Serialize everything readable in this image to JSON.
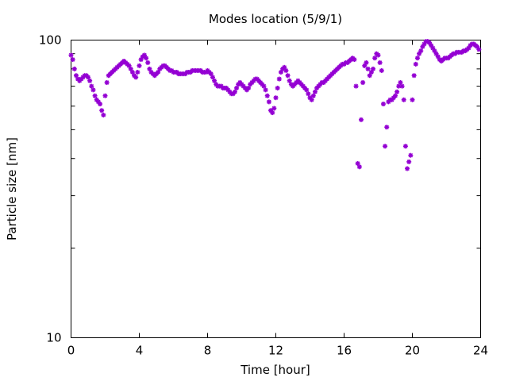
{
  "chart_data": {
    "type": "scatter",
    "title": "Modes location (5/9/1)",
    "xlabel": "Time [hour]",
    "ylabel": "Particle size [nm]",
    "xlim": [
      0,
      24
    ],
    "ylim": [
      10,
      100
    ],
    "yscale": "log",
    "grid": false,
    "x_ticks": [
      "0",
      "4",
      "8",
      "12",
      "16",
      "20",
      "24"
    ],
    "x_tick_values": [
      0,
      4,
      8,
      12,
      16,
      20,
      24
    ],
    "y_ticks": [
      "10",
      "100"
    ],
    "y_tick_values": [
      10,
      100
    ],
    "marker_color": "#9400d3",
    "series": [
      {
        "points": [
          [
            0.0,
            89
          ],
          [
            0.1,
            86
          ],
          [
            0.2,
            80
          ],
          [
            0.3,
            76
          ],
          [
            0.4,
            74
          ],
          [
            0.5,
            73
          ],
          [
            0.6,
            74
          ],
          [
            0.7,
            75
          ],
          [
            0.8,
            76
          ],
          [
            0.9,
            76
          ],
          [
            1.0,
            75
          ],
          [
            1.1,
            73
          ],
          [
            1.2,
            70
          ],
          [
            1.3,
            68
          ],
          [
            1.4,
            65
          ],
          [
            1.5,
            63
          ],
          [
            1.6,
            62
          ],
          [
            1.7,
            61
          ],
          [
            1.8,
            58
          ],
          [
            1.9,
            56
          ],
          [
            2.0,
            65
          ],
          [
            2.1,
            72
          ],
          [
            2.2,
            76
          ],
          [
            2.3,
            77
          ],
          [
            2.4,
            78
          ],
          [
            2.5,
            79
          ],
          [
            2.6,
            80
          ],
          [
            2.7,
            81
          ],
          [
            2.8,
            82
          ],
          [
            2.9,
            83
          ],
          [
            3.0,
            84
          ],
          [
            3.1,
            85
          ],
          [
            3.2,
            84
          ],
          [
            3.3,
            83
          ],
          [
            3.4,
            82
          ],
          [
            3.5,
            80
          ],
          [
            3.6,
            78
          ],
          [
            3.7,
            76
          ],
          [
            3.8,
            75
          ],
          [
            3.9,
            78
          ],
          [
            4.0,
            82
          ],
          [
            4.1,
            86
          ],
          [
            4.2,
            88
          ],
          [
            4.3,
            89
          ],
          [
            4.4,
            87
          ],
          [
            4.5,
            84
          ],
          [
            4.6,
            80
          ],
          [
            4.7,
            78
          ],
          [
            4.8,
            77
          ],
          [
            4.9,
            76
          ],
          [
            5.0,
            77
          ],
          [
            5.1,
            78
          ],
          [
            5.2,
            80
          ],
          [
            5.3,
            81
          ],
          [
            5.4,
            82
          ],
          [
            5.5,
            82
          ],
          [
            5.6,
            81
          ],
          [
            5.7,
            80
          ],
          [
            5.8,
            79
          ],
          [
            5.9,
            79
          ],
          [
            6.0,
            78
          ],
          [
            6.1,
            78
          ],
          [
            6.2,
            78
          ],
          [
            6.3,
            77
          ],
          [
            6.4,
            77
          ],
          [
            6.5,
            77
          ],
          [
            6.6,
            77
          ],
          [
            6.7,
            77
          ],
          [
            6.8,
            78
          ],
          [
            6.9,
            78
          ],
          [
            7.0,
            78
          ],
          [
            7.1,
            79
          ],
          [
            7.2,
            79
          ],
          [
            7.3,
            79
          ],
          [
            7.4,
            79
          ],
          [
            7.5,
            79
          ],
          [
            7.6,
            79
          ],
          [
            7.7,
            78
          ],
          [
            7.8,
            78
          ],
          [
            7.9,
            78
          ],
          [
            8.0,
            79
          ],
          [
            8.1,
            78
          ],
          [
            8.2,
            77
          ],
          [
            8.3,
            75
          ],
          [
            8.4,
            73
          ],
          [
            8.5,
            71
          ],
          [
            8.6,
            70
          ],
          [
            8.7,
            70
          ],
          [
            8.8,
            70
          ],
          [
            8.9,
            69
          ],
          [
            9.0,
            69
          ],
          [
            9.1,
            69
          ],
          [
            9.2,
            68
          ],
          [
            9.3,
            67
          ],
          [
            9.4,
            66
          ],
          [
            9.5,
            66
          ],
          [
            9.6,
            67
          ],
          [
            9.7,
            69
          ],
          [
            9.8,
            71
          ],
          [
            9.9,
            72
          ],
          [
            10.0,
            71
          ],
          [
            10.1,
            70
          ],
          [
            10.2,
            69
          ],
          [
            10.3,
            68
          ],
          [
            10.4,
            69
          ],
          [
            10.5,
            71
          ],
          [
            10.6,
            72
          ],
          [
            10.7,
            73
          ],
          [
            10.8,
            74
          ],
          [
            10.9,
            74
          ],
          [
            11.0,
            73
          ],
          [
            11.1,
            72
          ],
          [
            11.2,
            71
          ],
          [
            11.3,
            70
          ],
          [
            11.4,
            68
          ],
          [
            11.5,
            65
          ],
          [
            11.6,
            62
          ],
          [
            11.7,
            58
          ],
          [
            11.8,
            57
          ],
          [
            11.9,
            59
          ],
          [
            12.0,
            64
          ],
          [
            12.1,
            69
          ],
          [
            12.2,
            74
          ],
          [
            12.3,
            78
          ],
          [
            12.4,
            80
          ],
          [
            12.5,
            81
          ],
          [
            12.6,
            79
          ],
          [
            12.7,
            76
          ],
          [
            12.8,
            73
          ],
          [
            12.9,
            71
          ],
          [
            13.0,
            70
          ],
          [
            13.1,
            71
          ],
          [
            13.2,
            72
          ],
          [
            13.3,
            73
          ],
          [
            13.4,
            72
          ],
          [
            13.5,
            71
          ],
          [
            13.6,
            70
          ],
          [
            13.7,
            69
          ],
          [
            13.8,
            68
          ],
          [
            13.9,
            66
          ],
          [
            14.0,
            64
          ],
          [
            14.1,
            63
          ],
          [
            14.2,
            65
          ],
          [
            14.3,
            67
          ],
          [
            14.4,
            69
          ],
          [
            14.5,
            70
          ],
          [
            14.6,
            71
          ],
          [
            14.7,
            72
          ],
          [
            14.8,
            72
          ],
          [
            14.9,
            73
          ],
          [
            15.0,
            74
          ],
          [
            15.1,
            75
          ],
          [
            15.2,
            76
          ],
          [
            15.3,
            77
          ],
          [
            15.4,
            78
          ],
          [
            15.5,
            79
          ],
          [
            15.6,
            80
          ],
          [
            15.7,
            81
          ],
          [
            15.8,
            82
          ],
          [
            15.9,
            83
          ],
          [
            16.0,
            83
          ],
          [
            16.1,
            84
          ],
          [
            16.2,
            84
          ],
          [
            16.3,
            85
          ],
          [
            16.4,
            86
          ],
          [
            16.5,
            87
          ],
          [
            16.6,
            86
          ],
          [
            16.7,
            70
          ],
          [
            16.8,
            38.5
          ],
          [
            16.9,
            37.5
          ],
          [
            17.0,
            54
          ],
          [
            17.1,
            72
          ],
          [
            17.2,
            82
          ],
          [
            17.3,
            84
          ],
          [
            17.4,
            80
          ],
          [
            17.5,
            76
          ],
          [
            17.6,
            78
          ],
          [
            17.7,
            80
          ],
          [
            17.8,
            87
          ],
          [
            17.9,
            90
          ],
          [
            18.0,
            89
          ],
          [
            18.1,
            84
          ],
          [
            18.2,
            79
          ],
          [
            18.3,
            61
          ],
          [
            18.4,
            44
          ],
          [
            18.5,
            51
          ],
          [
            18.6,
            62
          ],
          [
            18.7,
            63
          ],
          [
            18.8,
            63
          ],
          [
            18.9,
            64
          ],
          [
            19.0,
            65
          ],
          [
            19.1,
            67
          ],
          [
            19.2,
            70
          ],
          [
            19.3,
            72
          ],
          [
            19.4,
            70
          ],
          [
            19.5,
            63
          ],
          [
            19.6,
            44
          ],
          [
            19.7,
            37
          ],
          [
            19.8,
            39
          ],
          [
            19.9,
            41
          ],
          [
            20.0,
            63
          ],
          [
            20.1,
            76
          ],
          [
            20.2,
            83
          ],
          [
            20.3,
            87
          ],
          [
            20.4,
            90
          ],
          [
            20.5,
            92
          ],
          [
            20.6,
            95
          ],
          [
            20.7,
            97
          ],
          [
            20.8,
            99
          ],
          [
            20.9,
            99
          ],
          [
            21.0,
            98
          ],
          [
            21.1,
            96
          ],
          [
            21.2,
            94
          ],
          [
            21.3,
            92
          ],
          [
            21.4,
            90
          ],
          [
            21.5,
            88
          ],
          [
            21.6,
            86
          ],
          [
            21.7,
            85
          ],
          [
            21.8,
            86
          ],
          [
            21.9,
            87
          ],
          [
            22.0,
            87
          ],
          [
            22.1,
            87
          ],
          [
            22.2,
            88
          ],
          [
            22.3,
            89
          ],
          [
            22.4,
            90
          ],
          [
            22.5,
            90
          ],
          [
            22.6,
            91
          ],
          [
            22.7,
            91
          ],
          [
            22.8,
            91
          ],
          [
            22.9,
            91
          ],
          [
            23.0,
            92
          ],
          [
            23.1,
            92
          ],
          [
            23.2,
            93
          ],
          [
            23.3,
            94
          ],
          [
            23.4,
            96
          ],
          [
            23.5,
            97
          ],
          [
            23.6,
            97
          ],
          [
            23.7,
            96
          ],
          [
            23.8,
            95
          ],
          [
            23.9,
            93
          ]
        ]
      }
    ]
  }
}
